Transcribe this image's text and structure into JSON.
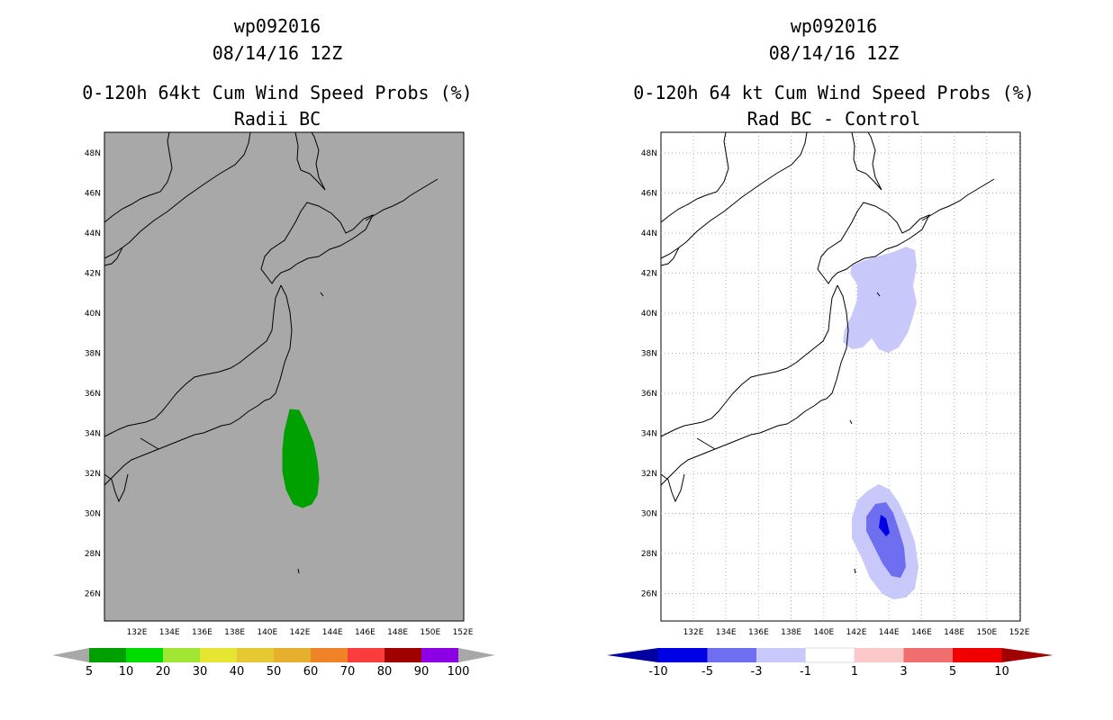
{
  "left_panel": {
    "title_line1": "wp092016",
    "title_line2": "08/14/16 12Z",
    "title_line3": "0-120h 64kt Cum Wind Speed Probs (%)",
    "title_line4": "Radii BC",
    "background_color": "#a8a8a8",
    "colorbar": {
      "labels": [
        "5",
        "10",
        "20",
        "30",
        "40",
        "50",
        "60",
        "70",
        "80",
        "90",
        "100"
      ],
      "colors": [
        "#00a000",
        "#00dc00",
        "#a0e632",
        "#e6e632",
        "#e6c832",
        "#e6af2d",
        "#f08228",
        "#fa3c3c",
        "#a00000",
        "#8c00e6"
      ],
      "end_arrow_color": "#a8a8a8"
    }
  },
  "right_panel": {
    "title_line1": "wp092016",
    "title_line2": "08/14/16 12Z",
    "title_line3": "0-120h 64 kt Cum Wind Speed Probs (%)",
    "title_line4": "Rad BC - Control",
    "background_color": "#ffffff",
    "colorbar": {
      "labels": [
        "-10",
        "-5",
        "-3",
        "-1",
        "1",
        "3",
        "5",
        "10"
      ],
      "colors": [
        "#0000e6",
        "#6e6ef0",
        "#c8c8fa",
        "#ffffff",
        "#fac8c8",
        "#f06e6e",
        "#f00000"
      ],
      "low_arrow_color": "#0000a0",
      "high_arrow_color": "#a00000"
    }
  },
  "axes": {
    "lon_labels": [
      "132E",
      "134E",
      "136E",
      "138E",
      "140E",
      "142E",
      "144E",
      "146E",
      "148E",
      "150E",
      "152E"
    ],
    "lat_labels": [
      "48N",
      "46N",
      "44N",
      "42N",
      "40N",
      "38N",
      "36N",
      "34N",
      "32N",
      "30N",
      "28N",
      "26N"
    ]
  }
}
